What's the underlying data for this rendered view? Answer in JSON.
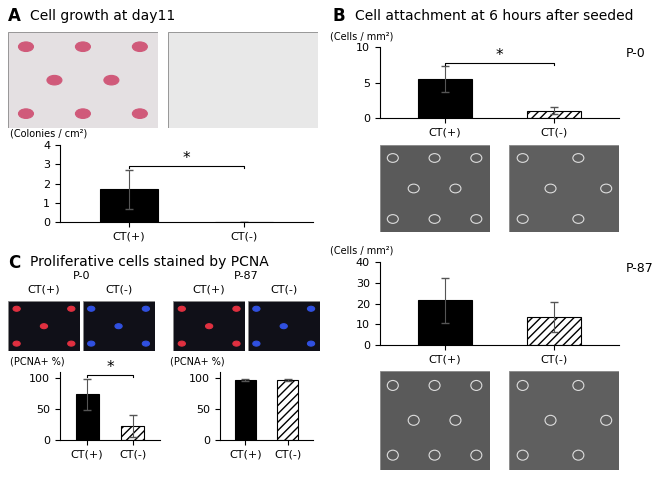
{
  "panels": [
    {
      "letter": "A",
      "title": "Cell growth at day11"
    },
    {
      "letter": "B",
      "title": "Cell attachment at 6 hours after seeded"
    },
    {
      "letter": "C",
      "title": "Proliferative cells stained by PCNA",
      "image_groups": [
        {
          "name": "P-0",
          "columns": [
            "CT(+)",
            "CT(-)"
          ]
        },
        {
          "name": "P-87",
          "columns": [
            "CT(+)",
            "CT(-)"
          ]
        }
      ]
    }
  ],
  "chart_data": [
    {
      "type": "bar",
      "ylabel": "(Colonies / cm²)",
      "categories": [
        "CT(+)",
        "CT(-)"
      ],
      "values": [
        1.7,
        0
      ],
      "errors": [
        1.0,
        0
      ],
      "colors": [
        "#000000",
        "#ffffff"
      ],
      "ylim": [
        0,
        4
      ],
      "yticks": [
        0,
        1,
        2,
        3,
        4
      ],
      "significance": "*"
    },
    {
      "type": "bar",
      "title": "P-0",
      "ylabel": "(Cells / mm²)",
      "categories": [
        "CT(+)",
        "CT(-)"
      ],
      "values": [
        5.5,
        1.0
      ],
      "errors": [
        1.8,
        0.5
      ],
      "colors": [
        "#000000",
        "#ffffff"
      ],
      "ylim": [
        0,
        10
      ],
      "yticks": [
        0,
        5,
        10
      ],
      "significance": "*"
    },
    {
      "type": "bar",
      "title": "P-87",
      "ylabel": "(Cells / mm²)",
      "categories": [
        "CT(+)",
        "CT(-)"
      ],
      "values": [
        21.5,
        13.5
      ],
      "errors": [
        11,
        7
      ],
      "colors": [
        "#000000",
        "#ffffff"
      ],
      "ylim": [
        0,
        40
      ],
      "yticks": [
        0,
        10,
        20,
        30,
        40
      ]
    },
    {
      "type": "bar",
      "ylabel": "(PCNA+ %)",
      "categories": [
        "CT(+)",
        "CT(-)"
      ],
      "values": [
        74,
        23
      ],
      "errors": [
        25,
        17
      ],
      "colors": [
        "#000000",
        "#ffffff"
      ],
      "ylim": [
        0,
        110
      ],
      "yticks": [
        0,
        50,
        100
      ],
      "significance": "*"
    },
    {
      "type": "bar",
      "ylabel": "(PCNA+ %)",
      "categories": [
        "CT(+)",
        "CT(-)"
      ],
      "values": [
        97,
        97
      ],
      "errors": [
        2,
        2
      ],
      "colors": [
        "#000000",
        "#ffffff"
      ],
      "ylim": [
        0,
        110
      ],
      "yticks": [
        0,
        50,
        100
      ]
    }
  ]
}
